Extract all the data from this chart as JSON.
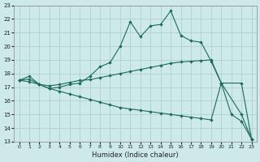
{
  "xlabel": "Humidex (Indice chaleur)",
  "xlim": [
    -0.5,
    23.5
  ],
  "ylim": [
    13,
    23
  ],
  "xticks": [
    0,
    1,
    2,
    3,
    4,
    5,
    6,
    7,
    8,
    9,
    10,
    11,
    12,
    13,
    14,
    15,
    16,
    17,
    18,
    19,
    20,
    21,
    22,
    23
  ],
  "yticks": [
    13,
    14,
    15,
    16,
    17,
    18,
    19,
    20,
    21,
    22,
    23
  ],
  "bg_color": "#cde9e9",
  "grid_color": "#aacccc",
  "line_color": "#1a6b5a",
  "line1_x": [
    0,
    1,
    2,
    3,
    4,
    5,
    6,
    7,
    8,
    9,
    10,
    11,
    12,
    13,
    14,
    15,
    16,
    17,
    18,
    19,
    20,
    21,
    22,
    23
  ],
  "line1_y": [
    17.5,
    17.8,
    17.2,
    16.9,
    17.0,
    17.2,
    17.3,
    17.8,
    18.5,
    18.8,
    20.0,
    21.8,
    20.7,
    21.5,
    21.6,
    22.6,
    20.8,
    20.4,
    20.3,
    18.9,
    17.3,
    15.0,
    14.5,
    13.2
  ],
  "line2_x": [
    0,
    1,
    2,
    3,
    4,
    5,
    6,
    7,
    8,
    9,
    10,
    11,
    12,
    13,
    14,
    15,
    16,
    17,
    18,
    19,
    20,
    22,
    23
  ],
  "line2_y": [
    17.5,
    17.6,
    17.2,
    17.1,
    17.2,
    17.35,
    17.5,
    17.55,
    17.7,
    17.85,
    18.0,
    18.15,
    18.3,
    18.45,
    18.6,
    18.75,
    18.85,
    18.9,
    18.95,
    19.0,
    17.3,
    17.3,
    13.2
  ],
  "line3_x": [
    0,
    1,
    2,
    3,
    4,
    5,
    6,
    7,
    8,
    9,
    10,
    11,
    12,
    13,
    14,
    15,
    16,
    17,
    18,
    19,
    20,
    22,
    23
  ],
  "line3_y": [
    17.5,
    17.4,
    17.2,
    16.9,
    16.7,
    16.5,
    16.3,
    16.1,
    15.9,
    15.7,
    15.5,
    15.4,
    15.3,
    15.2,
    15.1,
    15.0,
    14.9,
    14.8,
    14.7,
    14.6,
    17.3,
    15.0,
    13.2
  ]
}
